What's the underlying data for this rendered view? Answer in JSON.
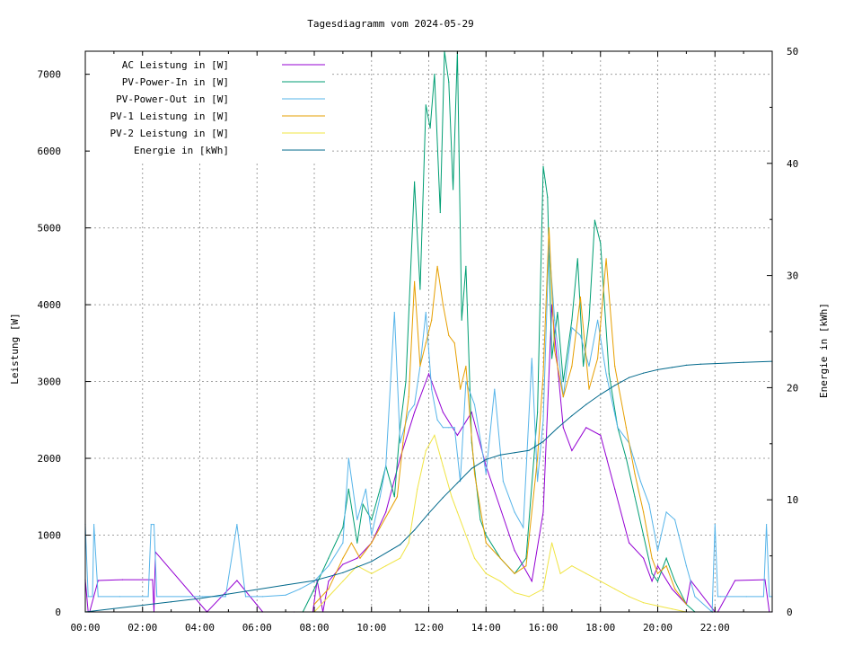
{
  "chart_data": {
    "type": "line",
    "title": "Tagesdiagramm vom 2024-05-29",
    "ylabel": "Leistung [W]",
    "y2label": "Energie in [kWh]",
    "xlim": [
      0,
      24
    ],
    "ylim": [
      0,
      7300
    ],
    "y2lim": [
      0,
      50
    ],
    "grid": true,
    "legend_position": "top-left",
    "xticks": [
      "00:00",
      "02:00",
      "04:00",
      "06:00",
      "08:00",
      "10:00",
      "12:00",
      "14:00",
      "16:00",
      "18:00",
      "20:00",
      "22:00"
    ],
    "yticks": [
      0,
      1000,
      2000,
      3000,
      4000,
      5000,
      6000,
      7000
    ],
    "y2ticks": [
      0,
      10,
      20,
      30,
      40,
      50
    ],
    "series": [
      {
        "name": "AC Leistung in [W]",
        "axis": "left",
        "color": "#9400d3",
        "x": [
          0.0,
          0.1,
          0.15,
          0.45,
          1.3,
          2.35,
          2.4,
          2.45,
          4.25,
          5.3,
          6.2,
          7.3,
          7.95,
          8.1,
          8.3,
          8.5,
          9.0,
          9.5,
          10.0,
          10.5,
          11.0,
          11.5,
          12.0,
          12.5,
          13.0,
          13.5,
          14.0,
          15.0,
          15.6,
          16.0,
          16.3,
          16.7,
          17.0,
          17.5,
          18.0,
          18.5,
          19.0,
          19.5,
          19.8,
          20.0,
          20.5,
          21.0,
          21.15,
          22.0,
          22.1,
          22.7,
          23.75,
          23.9,
          24.0
        ],
        "y": [
          420,
          0,
          0,
          410,
          420,
          420,
          0,
          780,
          0,
          410,
          0,
          0,
          0,
          410,
          0,
          400,
          620,
          700,
          900,
          1300,
          2000,
          2600,
          3100,
          2600,
          2300,
          2600,
          1900,
          800,
          400,
          1300,
          4000,
          2400,
          2100,
          2400,
          2300,
          1600,
          900,
          700,
          400,
          600,
          300,
          100,
          410,
          0,
          0,
          410,
          420,
          0,
          0
        ]
      },
      {
        "name": "PV-Power-In in [W]",
        "axis": "left",
        "color": "#009e73",
        "x": [
          7.6,
          8.0,
          8.5,
          9.0,
          9.2,
          9.5,
          9.7,
          10.0,
          10.3,
          10.5,
          10.8,
          11.0,
          11.2,
          11.5,
          11.7,
          11.9,
          12.05,
          12.2,
          12.4,
          12.55,
          12.7,
          12.85,
          13.0,
          13.15,
          13.3,
          13.5,
          13.8,
          14.0,
          14.5,
          15.0,
          15.4,
          15.8,
          16.0,
          16.15,
          16.3,
          16.5,
          16.7,
          17.0,
          17.2,
          17.4,
          17.6,
          17.8,
          18.0,
          18.3,
          18.6,
          18.9,
          19.2,
          19.5,
          19.8,
          20.0,
          20.3,
          20.6,
          21.0,
          21.3
        ],
        "y": [
          0,
          300,
          700,
          1100,
          1600,
          900,
          1400,
          1200,
          1600,
          1900,
          1500,
          2400,
          3000,
          5600,
          4200,
          6600,
          6300,
          7000,
          5200,
          7300,
          6900,
          5500,
          7300,
          3800,
          4500,
          2200,
          1200,
          1000,
          700,
          500,
          700,
          2600,
          5800,
          5400,
          3300,
          3900,
          3000,
          3800,
          4600,
          3200,
          3800,
          5100,
          4800,
          3100,
          2400,
          2000,
          1500,
          1000,
          500,
          400,
          700,
          400,
          100,
          0
        ]
      },
      {
        "name": "PV-Power-Out in [W]",
        "axis": "left",
        "color": "#56b4e9",
        "x": [
          0.0,
          0.1,
          0.25,
          0.3,
          0.45,
          1.2,
          2.2,
          2.3,
          2.4,
          2.5,
          4.1,
          4.9,
          5.3,
          5.6,
          6.2,
          7.0,
          7.5,
          8.0,
          8.5,
          9.0,
          9.2,
          9.5,
          9.8,
          10.0,
          10.3,
          10.5,
          10.8,
          11.0,
          11.3,
          11.5,
          11.7,
          11.9,
          12.1,
          12.3,
          12.5,
          12.7,
          12.9,
          13.1,
          13.3,
          13.6,
          14.0,
          14.3,
          14.6,
          15.0,
          15.3,
          15.6,
          15.8,
          16.0,
          16.2,
          16.4,
          16.7,
          17.0,
          17.3,
          17.6,
          17.9,
          18.2,
          18.6,
          19.0,
          19.4,
          19.7,
          20.0,
          20.3,
          20.6,
          21.0,
          21.3,
          21.9,
          22.0,
          22.1,
          22.2,
          23.1,
          23.7,
          23.8,
          23.9,
          24.0
        ],
        "y": [
          1140,
          200,
          200,
          1140,
          200,
          200,
          200,
          1140,
          1140,
          200,
          200,
          200,
          1140,
          200,
          200,
          220,
          300,
          400,
          600,
          900,
          2000,
          1200,
          1600,
          1000,
          1500,
          1900,
          3900,
          2200,
          2600,
          2700,
          3200,
          3900,
          2900,
          2500,
          2400,
          2400,
          2400,
          1700,
          3000,
          2700,
          1800,
          2900,
          1700,
          1300,
          1100,
          3300,
          1700,
          2500,
          4800,
          3800,
          2800,
          3700,
          3600,
          3200,
          3800,
          3100,
          2400,
          2200,
          1700,
          1400,
          800,
          1300,
          1200,
          600,
          200,
          0,
          1140,
          200,
          200,
          200,
          200,
          1140,
          200,
          200
        ]
      },
      {
        "name": "PV-1 Leistung in [W]",
        "axis": "left",
        "color": "#e69f00",
        "x": [
          8.0,
          8.5,
          9.0,
          9.3,
          9.6,
          10.0,
          10.3,
          10.6,
          10.9,
          11.1,
          11.3,
          11.5,
          11.7,
          11.9,
          12.1,
          12.3,
          12.5,
          12.7,
          12.9,
          13.1,
          13.3,
          13.6,
          14.0,
          14.5,
          15.0,
          15.4,
          15.8,
          16.0,
          16.2,
          16.4,
          16.7,
          17.0,
          17.3,
          17.6,
          17.9,
          18.2,
          18.5,
          18.9,
          19.2,
          19.5,
          19.8,
          20.0,
          20.3,
          20.6,
          21.0
        ],
        "y": [
          100,
          300,
          700,
          900,
          700,
          900,
          1100,
          1300,
          1500,
          2200,
          2800,
          4300,
          3200,
          3500,
          3800,
          4500,
          4000,
          3600,
          3500,
          2900,
          3200,
          1800,
          900,
          700,
          500,
          600,
          2000,
          3100,
          5000,
          3400,
          2800,
          3200,
          4100,
          2900,
          3300,
          4600,
          3200,
          2400,
          1800,
          1300,
          700,
          500,
          600,
          300,
          100
        ]
      },
      {
        "name": "PV-2 Leistung in [W]",
        "axis": "left",
        "color": "#f0e442",
        "x": [
          8.0,
          8.5,
          9.0,
          9.5,
          10.0,
          10.5,
          11.0,
          11.3,
          11.6,
          11.9,
          12.2,
          12.5,
          12.8,
          13.0,
          13.3,
          13.6,
          14.0,
          14.5,
          15.0,
          15.5,
          16.0,
          16.3,
          16.6,
          17.0,
          17.5,
          18.0,
          18.5,
          19.0,
          19.5,
          20.0,
          20.5,
          21.0
        ],
        "y": [
          0,
          200,
          400,
          600,
          500,
          600,
          700,
          900,
          1600,
          2100,
          2300,
          1900,
          1500,
          1300,
          1000,
          700,
          500,
          400,
          250,
          200,
          300,
          900,
          500,
          600,
          500,
          400,
          300,
          200,
          120,
          80,
          40,
          0
        ]
      },
      {
        "name": "Energie in [kWh]",
        "axis": "right",
        "color": "#00688b",
        "x": [
          0.0,
          1.0,
          2.0,
          3.0,
          4.0,
          5.0,
          6.0,
          7.0,
          8.0,
          9.0,
          10.0,
          11.0,
          11.5,
          12.0,
          12.5,
          13.0,
          13.5,
          14.0,
          14.5,
          15.0,
          15.5,
          16.0,
          16.5,
          17.0,
          17.5,
          18.0,
          18.5,
          19.0,
          19.5,
          20.0,
          20.5,
          21.0,
          21.5,
          22.0,
          23.0,
          24.0
        ],
        "y": [
          0,
          0.3,
          0.6,
          0.9,
          1.2,
          1.6,
          2.0,
          2.4,
          2.8,
          3.5,
          4.5,
          6.0,
          7.3,
          8.8,
          10.2,
          11.5,
          12.8,
          13.6,
          14.0,
          14.2,
          14.4,
          15.2,
          16.4,
          17.5,
          18.5,
          19.4,
          20.2,
          20.9,
          21.3,
          21.6,
          21.8,
          22.0,
          22.1,
          22.15,
          22.25,
          22.35
        ]
      }
    ]
  }
}
